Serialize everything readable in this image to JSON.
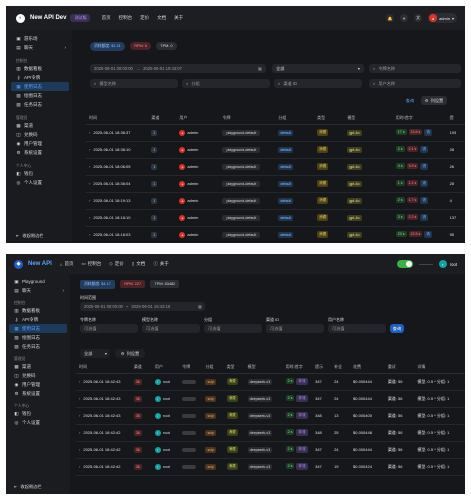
{
  "p1": {
    "brand": "New API Dev",
    "version": " 测试版",
    "nav": [
      "首页",
      "控制台",
      "定价",
      "文档",
      "关于"
    ],
    "user": "admin",
    "sidebar": {
      "top": [
        "游乐场",
        "聊天"
      ],
      "group1_title": "控制台",
      "group1": [
        "数据看板",
        "API令牌",
        "使用日志",
        "绘图日志",
        "任务日志"
      ],
      "group2_title": "管理员",
      "group2": [
        "渠道",
        "兑换码",
        "用户管理",
        "系统设置"
      ],
      "group3_title": "个人中心",
      "group3": [
        "钱包",
        "个人设置"
      ],
      "footer": "收起侧边栏"
    },
    "stats": {
      "quota": "消耗额度: $1.21",
      "rpm": "RPM: 6",
      "tpm": "TPM: 0"
    },
    "filters": {
      "date_start": "2025-06-01 00:00:00",
      "date_end": "2025-06-01 19:43:07",
      "type": "全部",
      "token_ph": "令牌名称",
      "model_ph": "模型名称",
      "group_ph": "分组",
      "channel_ph": "渠道 ID",
      "user_ph": "用户名称",
      "query_btn": "查询",
      "settings_btn": "列设置"
    },
    "columns": [
      "时间",
      "渠道",
      "用户",
      "令牌",
      "分组",
      "类型",
      "模型",
      "用时/首字",
      "提"
    ],
    "rows": [
      {
        "time": "2025-06-01 18:36:37",
        "channel": "1",
        "user": "admin",
        "token": "playground-default",
        "group": "default",
        "type": "消费",
        "model": "gpt-4o",
        "t1": "17 s",
        "t2": "13.6 s",
        "flag": "流",
        "tail": "193"
      },
      {
        "time": "2025-06-01 18:36:10",
        "channel": "1",
        "user": "admin",
        "token": "playground-default",
        "group": "default",
        "type": "消费",
        "model": "gpt-4o",
        "t1": "2 s",
        "t2": "2.1 s",
        "flag": "流",
        "tail": "28"
      },
      {
        "time": "2025-06-01 18:06:05",
        "channel": "1",
        "user": "admin",
        "token": "playground-default",
        "group": "default",
        "type": "消费",
        "model": "gpt-4o",
        "t1": "4 s",
        "t2": "3.9 s",
        "flag": "流",
        "tail": "26"
      },
      {
        "time": "2025-06-01 18:36:04",
        "channel": "1",
        "user": "admin",
        "token": "playground-default",
        "group": "default",
        "type": "消费",
        "model": "gpt-4o",
        "t1": "1 s",
        "t2": "1.1 s",
        "flag": "流",
        "tail": "28"
      },
      {
        "time": "2025-06-01 18:19:13",
        "channel": "1",
        "user": "admin",
        "token": "playground-default",
        "group": "default",
        "type": "消费",
        "model": "gpt-4o",
        "t1": "2 s",
        "t2": "1.7 s",
        "flag": "流",
        "tail": "4"
      },
      {
        "time": "2025-06-01 18:18:10",
        "channel": "1",
        "user": "admin",
        "token": "playground-default",
        "group": "default",
        "type": "消费",
        "model": "gpt-4o",
        "t1": "3 s",
        "t2": "2.2 s",
        "flag": "流",
        "tail": "137"
      },
      {
        "time": "2025-06-01 18:18:03",
        "channel": "1",
        "user": "admin",
        "token": "playground-default",
        "group": "default",
        "type": "消费",
        "model": "gpt-4o",
        "t1": "23 s",
        "t2": "22.5 s",
        "flag": "流",
        "tail": "95"
      }
    ]
  },
  "p2": {
    "brand": "New API",
    "nav": [
      "首页",
      "控制台",
      "定价",
      "文档",
      "关于"
    ],
    "user": "root",
    "sidebar": {
      "top": [
        "Playground",
        "聊天"
      ],
      "group1_title": "控制台",
      "group1": [
        "数据看板",
        "API令牌",
        "使用日志",
        "绘图日志",
        "任务日志"
      ],
      "group2_title": "管理员",
      "group2": [
        "渠道",
        "兑换码",
        "用户管理",
        "系统设置"
      ],
      "group3_title": "个人中心",
      "group3": [
        "钱包",
        "个人设置"
      ],
      "footer": "收起侧边栏"
    },
    "stats": {
      "quota": "消耗额度: $4.17",
      "rpm": "RPM: 227",
      "tpm": "TPM: 83482"
    },
    "filters": {
      "time_label": "时间范围",
      "date_start": "2025-06-01 00:00:00",
      "date_end": "2025-06-01 19:43:10",
      "token_label": "令牌名称",
      "token_ph": "可选值",
      "model_label": "模型名称",
      "model_ph": "可选值",
      "group_label": "分组",
      "group_ph": "可选值",
      "channel_label": "渠道 ID",
      "channel_ph": "可选值",
      "user_label": "用户名称",
      "user_ph": "可选值",
      "query_btn": "查询",
      "type": "全部",
      "settings_btn": "列设置"
    },
    "columns": [
      "时间",
      "渠道",
      "用户",
      "令牌",
      "分组",
      "类型",
      "模型",
      "用时/首字",
      "提示",
      "补全",
      "花费",
      "重试",
      "详情"
    ],
    "rows": [
      {
        "time": "2025-06-01 18:42:43",
        "channel": "36",
        "user": "root",
        "group": "svip",
        "type": "消费",
        "model": "deepseek-v3",
        "t1": "2 s",
        "flag": "非流",
        "prompt": "347",
        "comp": "24",
        "cost": "$0.000444",
        "retry": "渠道: 56",
        "detail": "模型: 0.5 * 分组: 1"
      },
      {
        "time": "2025-06-01 18:42:43",
        "channel": "36",
        "user": "root",
        "group": "svip",
        "type": "消费",
        "model": "deepseek-v3",
        "t1": "2 s",
        "flag": "非流",
        "prompt": "347",
        "comp": "24",
        "cost": "$0.000444",
        "retry": "渠道: 56",
        "detail": "模型: 0.5 * 分组: 1"
      },
      {
        "time": "2025-06-01 18:42:43",
        "channel": "36",
        "user": "root",
        "group": "svip",
        "type": "消费",
        "model": "deepseek-v3",
        "t1": "2 s",
        "flag": "非流",
        "prompt": "348",
        "comp": "13",
        "cost": "$0.000400",
        "retry": "渠道: 56",
        "detail": "模型: 0.5 * 分组: 1"
      },
      {
        "time": "2025-06-01 18:42:42",
        "channel": "36",
        "user": "root",
        "group": "svip",
        "type": "消费",
        "model": "deepseek-v3",
        "t1": "2 s",
        "flag": "非流",
        "prompt": "348",
        "comp": "25",
        "cost": "$0.000448",
        "retry": "渠道: 56",
        "detail": "模型: 0.5 * 分组: 1"
      },
      {
        "time": "2025-06-01 18:42:42",
        "channel": "36",
        "user": "root",
        "group": "svip",
        "type": "消费",
        "model": "deepseek-v3",
        "t1": "2 s",
        "flag": "非流",
        "prompt": "347",
        "comp": "24",
        "cost": "$0.000444",
        "retry": "渠道: 56",
        "detail": "模型: 0.5 * 分组: 1"
      },
      {
        "time": "2025-06-01 18:42:42",
        "channel": "36",
        "user": "root",
        "group": "svip",
        "type": "消费",
        "model": "deepseek-v3",
        "t1": "2 s",
        "flag": "非流",
        "prompt": "347",
        "comp": "19",
        "cost": "$0.000424",
        "retry": "渠道: 56",
        "detail": "模型: 0.5 * 分组: 1"
      }
    ]
  },
  "colors": {
    "accent": "#3b82f6",
    "red": "#d9342b",
    "green": "#2e7d32"
  }
}
